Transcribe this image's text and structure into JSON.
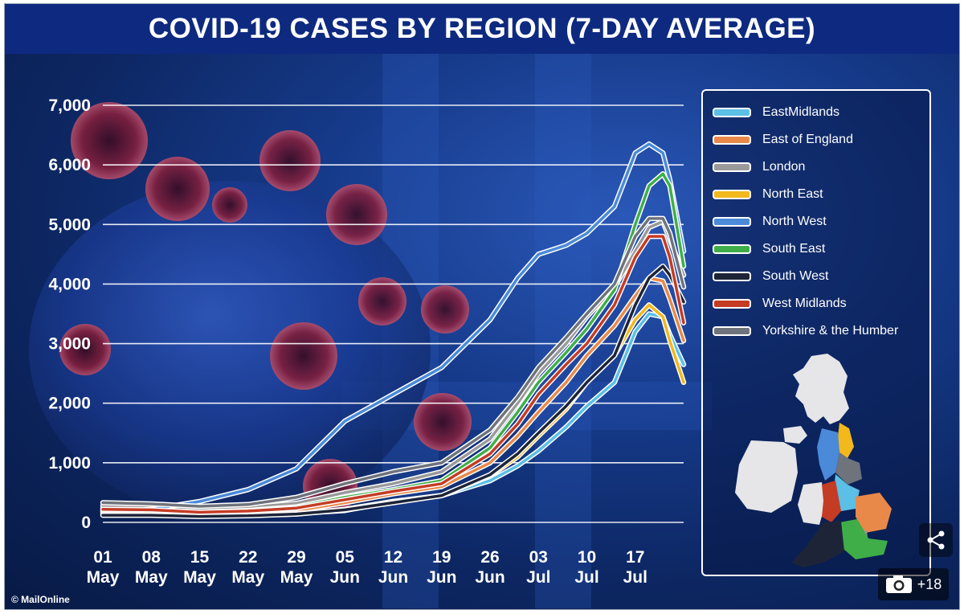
{
  "header": {
    "title": "COVID-19 CASES BY REGION (7-DAY AVERAGE)"
  },
  "credit": "© MailOnline",
  "gallery": {
    "count": "+18",
    "icon": "camera-icon"
  },
  "share_icon": "share-icon",
  "chart_data": {
    "type": "line",
    "title": "COVID-19 CASES BY REGION (7-DAY AVERAGE)",
    "ylim": [
      0,
      7000
    ],
    "yticks": [
      0,
      1000,
      2000,
      3000,
      4000,
      5000,
      6000,
      7000
    ],
    "ytick_labels": [
      "0",
      "1,000",
      "2,000",
      "3,000",
      "4,000",
      "5,000",
      "6,000",
      "7,000"
    ],
    "grid": true,
    "legend_position": "right",
    "x_ticks": [
      {
        "day": 0,
        "label": [
          "01",
          "May"
        ]
      },
      {
        "day": 7,
        "label": [
          "08",
          "May"
        ]
      },
      {
        "day": 14,
        "label": [
          "15",
          "May"
        ]
      },
      {
        "day": 21,
        "label": [
          "22",
          "May"
        ]
      },
      {
        "day": 28,
        "label": [
          "29",
          "May"
        ]
      },
      {
        "day": 35,
        "label": [
          "05",
          "Jun"
        ]
      },
      {
        "day": 42,
        "label": [
          "12",
          "Jun"
        ]
      },
      {
        "day": 49,
        "label": [
          "19",
          "Jun"
        ]
      },
      {
        "day": 56,
        "label": [
          "26",
          "Jun"
        ]
      },
      {
        "day": 63,
        "label": [
          "03",
          "Jul"
        ]
      },
      {
        "day": 70,
        "label": [
          "10",
          "Jul"
        ]
      },
      {
        "day": 77,
        "label": [
          "17",
          "Jul"
        ]
      }
    ],
    "x": [
      0,
      7,
      14,
      21,
      28,
      35,
      42,
      49,
      56,
      60,
      63,
      67,
      70,
      74,
      77,
      79,
      81,
      82,
      84
    ],
    "series": [
      {
        "name": "EastMidlands",
        "color": "#5bbfe6",
        "values": [
          150,
          160,
          110,
          120,
          140,
          220,
          350,
          450,
          700,
          950,
          1200,
          1600,
          1950,
          2350,
          3200,
          3500,
          3450,
          3150,
          2650
        ]
      },
      {
        "name": "East of England",
        "color": "#e8894a",
        "values": [
          240,
          230,
          170,
          180,
          200,
          330,
          480,
          600,
          1000,
          1450,
          1850,
          2350,
          2800,
          3300,
          3800,
          4100,
          4050,
          3750,
          3050
        ]
      },
      {
        "name": "London",
        "color": "#9a9a9a",
        "values": [
          280,
          260,
          220,
          250,
          320,
          500,
          650,
          850,
          1400,
          2000,
          2500,
          3000,
          3450,
          3950,
          4550,
          4950,
          5050,
          4750,
          4150
        ]
      },
      {
        "name": "North East",
        "color": "#f2b81c",
        "values": [
          180,
          170,
          120,
          130,
          150,
          200,
          350,
          450,
          780,
          1100,
          1450,
          1900,
          2350,
          2800,
          3400,
          3650,
          3450,
          3050,
          2350
        ]
      },
      {
        "name": "North West",
        "color": "#4a8ad8",
        "values": [
          180,
          220,
          350,
          550,
          900,
          1700,
          2150,
          2600,
          3400,
          4100,
          4500,
          4650,
          4850,
          5300,
          6200,
          6350,
          6200,
          5750,
          4550
        ]
      },
      {
        "name": "South East",
        "color": "#3fae49",
        "values": [
          200,
          210,
          170,
          200,
          260,
          420,
          550,
          700,
          1250,
          1850,
          2350,
          2850,
          3250,
          3900,
          5000,
          5650,
          5850,
          5650,
          4300
        ]
      },
      {
        "name": "South West",
        "color": "#1d2438",
        "values": [
          120,
          120,
          100,
          110,
          140,
          210,
          330,
          450,
          800,
          1150,
          1500,
          1950,
          2350,
          2800,
          3650,
          4100,
          4300,
          4150,
          3700
        ]
      },
      {
        "name": "West Midlands",
        "color": "#c43c24",
        "values": [
          220,
          210,
          170,
          190,
          240,
          380,
          520,
          650,
          1150,
          1650,
          2150,
          2650,
          3000,
          3650,
          4450,
          4800,
          4800,
          4450,
          3350
        ]
      },
      {
        "name": "Yorkshire & the Humber",
        "color": "#6e737c",
        "values": [
          330,
          310,
          270,
          300,
          420,
          650,
          850,
          1000,
          1550,
          2100,
          2600,
          3100,
          3500,
          4000,
          4800,
          5100,
          5100,
          4850,
          3950
        ]
      }
    ]
  }
}
